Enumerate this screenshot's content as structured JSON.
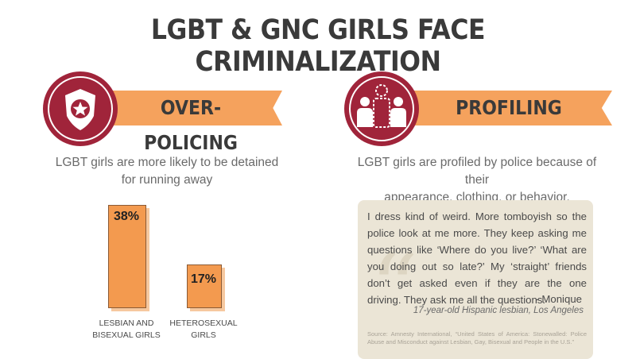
{
  "title": "LGBT & GNC GIRLS FACE CRIMINALIZATION",
  "colors": {
    "badge": "#a0243a",
    "ribbon": "#f5a25d",
    "bar": "#f39a4f",
    "quote_bg": "#ebe5d6"
  },
  "left": {
    "heading": "OVER-POLICING",
    "icon": "police-badge-icon",
    "caption_line1": "LGBT girls are more likely to be detained",
    "caption_line2": "for running away",
    "bars": [
      {
        "value": 38,
        "value_label": "38%",
        "label_line1": "LESBIAN AND",
        "label_line2": "BISEXUAL GIRLS"
      },
      {
        "value": 17,
        "value_label": "17%",
        "label_line1": "HETEROSEXUAL",
        "label_line2": "GIRLS"
      }
    ]
  },
  "right": {
    "heading": "PROFILING",
    "icon": "profiled-person-icon",
    "caption_line1": "LGBT girls are profiled by police because of their",
    "caption_line2": "appearance, clothing, or behavior.",
    "quote": {
      "text": "I dress kind of weird. More tomboyish so the police look at me more. They keep asking me questions like ‘Where do you live?’ ‘What are you doing out so late?’ My ‘straight’ friends don’t get asked even if they are the one driving. They ask me all the questions.",
      "author": "- Monique",
      "description": "17-year-old Hispanic lesbian, Los Angeles",
      "source": "Source: Amnesty International, “United States of America: Stonewalled: Police Abuse and Misconduct against Lesbian, Gay, Bisexual and People in the U.S.”"
    }
  }
}
